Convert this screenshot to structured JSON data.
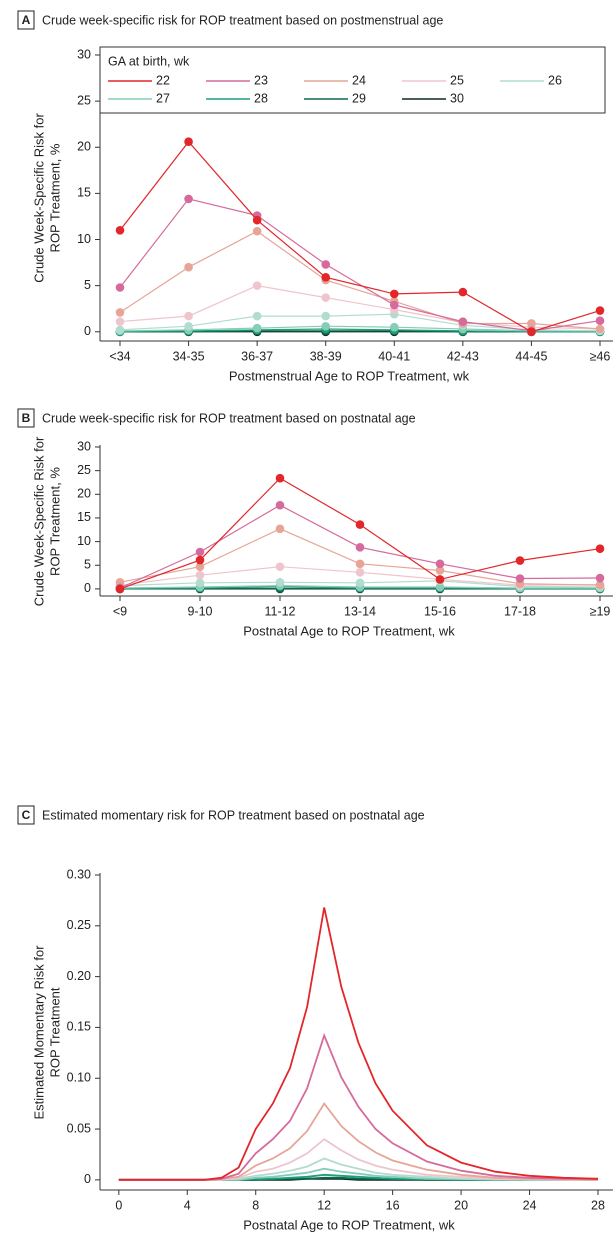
{
  "chart_data": [
    {
      "type": "line",
      "panel": "A",
      "title": "Crude week-specific risk for ROP treatment based on postmenstrual age",
      "ylabel": [
        "Crude Week-Specific Risk for",
        "ROP Treatment, %"
      ],
      "xlabel": "Postmenstrual Age to ROP Treatment, wk",
      "categories": [
        "<34",
        "34-35",
        "36-37",
        "38-39",
        "40-41",
        "42-43",
        "44-45",
        "≥46"
      ],
      "ylim": [
        -1,
        30
      ],
      "yticks": [
        0,
        5,
        10,
        15,
        20,
        25,
        30
      ],
      "markers": true,
      "legend_title": "GA at birth, wk",
      "series": [
        {
          "name": "22",
          "color": "#e2262a",
          "values": [
            11,
            20.6,
            12.1,
            5.9,
            4.1,
            4.3,
            0,
            2.3
          ]
        },
        {
          "name": "23",
          "color": "#d66a9c",
          "values": [
            4.8,
            14.4,
            12.6,
            7.3,
            2.9,
            1.1,
            0.1,
            1.2
          ]
        },
        {
          "name": "24",
          "color": "#e6a597",
          "values": [
            2.1,
            7.0,
            10.9,
            5.6,
            3.3,
            0.9,
            0.9,
            0.3
          ]
        },
        {
          "name": "25",
          "color": "#efc5cd",
          "values": [
            1.1,
            1.7,
            5.0,
            3.7,
            2.4,
            1.0,
            0.5,
            0.3
          ]
        },
        {
          "name": "26",
          "color": "#b2dccf",
          "values": [
            0.2,
            0.6,
            1.7,
            1.7,
            1.9,
            0.7,
            0.2,
            0.1
          ]
        },
        {
          "name": "27",
          "color": "#86cdb8",
          "values": [
            0.1,
            0.2,
            0.4,
            0.6,
            0.5,
            0.3,
            0.1,
            0.1
          ]
        },
        {
          "name": "28",
          "color": "#1f9e7d",
          "values": [
            0,
            0.1,
            0.2,
            0.3,
            0.2,
            0.1,
            0,
            0
          ]
        },
        {
          "name": "29",
          "color": "#0b6b48",
          "values": [
            0,
            0,
            0.1,
            0.1,
            0.1,
            0,
            0,
            0
          ]
        },
        {
          "name": "30",
          "color": "#0d2b20",
          "values": [
            0,
            0,
            0,
            0,
            0,
            0,
            0,
            0
          ]
        }
      ]
    },
    {
      "type": "line",
      "panel": "B",
      "title": "Crude week-specific risk for ROP treatment based on postnatal age",
      "ylabel": [
        "Crude Week-Specific Risk for",
        "ROP Treatment, %"
      ],
      "xlabel": "Postnatal Age to ROP Treatment, wk",
      "categories": [
        "<9",
        "9-10",
        "11-12",
        "13-14",
        "15-16",
        "17-18",
        "≥19"
      ],
      "ylim": [
        -1.5,
        30
      ],
      "yticks": [
        0,
        5,
        10,
        15,
        20,
        25,
        30
      ],
      "markers": true,
      "series": [
        {
          "color": "#e2262a",
          "values": [
            0,
            6.1,
            23.4,
            13.6,
            2.0,
            6.0,
            8.5
          ]
        },
        {
          "color": "#d66a9c",
          "values": [
            0.2,
            7.8,
            17.7,
            8.8,
            5.3,
            2.2,
            2.3
          ]
        },
        {
          "color": "#e6a597",
          "values": [
            1.4,
            4.7,
            12.7,
            5.3,
            3.9,
            1.1,
            0.8
          ]
        },
        {
          "color": "#efc5cd",
          "values": [
            0.8,
            2.9,
            4.7,
            3.5,
            2.0,
            0.8,
            0.9
          ]
        },
        {
          "color": "#b2dccf",
          "values": [
            0.7,
            1.3,
            1.4,
            1.3,
            1.7,
            0.5,
            0.4
          ]
        },
        {
          "color": "#86cdb8",
          "values": [
            0.2,
            0.4,
            0.7,
            0.4,
            0.4,
            0.2,
            0.2
          ]
        },
        {
          "color": "#1f9e7d",
          "values": [
            0.1,
            0.2,
            0.5,
            0.2,
            0.2,
            0.1,
            0.1
          ]
        },
        {
          "color": "#0b6b48",
          "values": [
            0,
            0.1,
            0.1,
            0.1,
            0.1,
            0,
            0
          ]
        },
        {
          "color": "#0d2b20",
          "values": [
            0,
            0,
            0,
            0,
            0,
            0,
            0
          ]
        }
      ]
    },
    {
      "type": "line",
      "panel": "C",
      "title": "Estimated momentary risk for ROP treatment based on postnatal age",
      "ylabel": [
        "Estimated Momentary Risk for",
        "ROP Treatment"
      ],
      "xlabel": "Postnatal Age to ROP Treatment, wk",
      "x": [
        0,
        2,
        4,
        5,
        6,
        7,
        8,
        9,
        10,
        11,
        12,
        13,
        14,
        15,
        16,
        18,
        20,
        22,
        24,
        26,
        28
      ],
      "xlim": [
        -1.1,
        28
      ],
      "xticks": [
        0,
        4,
        8,
        12,
        16,
        20,
        24,
        28
      ],
      "ylim": [
        -0.01,
        0.3
      ],
      "yticks": [
        0,
        0.05,
        {
          "value": 0.1,
          "label": "0.10"
        },
        0.15,
        {
          "value": 0.2,
          "label": "0.20"
        },
        0.25,
        {
          "value": 0.3,
          "label": "0.30"
        }
      ],
      "markers": false,
      "series": [
        {
          "color": "#e2262a",
          "values": [
            0,
            0,
            0,
            0,
            0.002,
            0.012,
            0.05,
            0.075,
            0.11,
            0.17,
            0.268,
            0.19,
            0.135,
            0.095,
            0.068,
            0.034,
            0.017,
            0.008,
            0.004,
            0.002,
            0.001
          ]
        },
        {
          "color": "#d66a9c",
          "values": [
            0,
            0,
            0,
            0,
            0.001,
            0.006,
            0.026,
            0.04,
            0.058,
            0.09,
            0.142,
            0.101,
            0.072,
            0.05,
            0.036,
            0.018,
            0.009,
            0.004,
            0.002,
            0.001,
            0.001
          ]
        },
        {
          "color": "#e6a597",
          "values": [
            0,
            0,
            0,
            0,
            0.001,
            0.003,
            0.014,
            0.021,
            0.031,
            0.048,
            0.075,
            0.053,
            0.038,
            0.027,
            0.019,
            0.01,
            0.005,
            0.002,
            0.001,
            0.001,
            0
          ]
        },
        {
          "color": "#efc5cd",
          "values": [
            0,
            0,
            0,
            0,
            0,
            0.002,
            0.008,
            0.011,
            0.017,
            0.026,
            0.04,
            0.029,
            0.02,
            0.014,
            0.01,
            0.005,
            0.003,
            0.001,
            0.001,
            0,
            0
          ]
        },
        {
          "color": "#b2dccf",
          "values": [
            0,
            0,
            0,
            0,
            0,
            0.001,
            0.004,
            0.006,
            0.009,
            0.013,
            0.021,
            0.015,
            0.011,
            0.007,
            0.005,
            0.003,
            0.001,
            0.001,
            0,
            0,
            0
          ]
        },
        {
          "color": "#86cdb8",
          "values": [
            0,
            0,
            0,
            0,
            0,
            0,
            0.002,
            0.003,
            0.005,
            0.007,
            0.011,
            0.008,
            0.006,
            0.004,
            0.003,
            0.001,
            0.001,
            0,
            0,
            0,
            0
          ]
        },
        {
          "color": "#1f9e7d",
          "values": [
            0,
            0,
            0,
            0,
            0,
            0,
            0.001,
            0.001,
            0.002,
            0.003,
            0.005,
            0.004,
            0.003,
            0.002,
            0.001,
            0.001,
            0,
            0,
            0,
            0,
            0
          ]
        },
        {
          "color": "#0b6b48",
          "values": [
            0,
            0,
            0,
            0,
            0,
            0,
            0,
            0.001,
            0.001,
            0.001,
            0.002,
            0.002,
            0.001,
            0.001,
            0.001,
            0,
            0,
            0,
            0,
            0,
            0
          ]
        },
        {
          "color": "#0d2b20",
          "values": [
            0,
            0,
            0,
            0,
            0,
            0,
            0,
            0,
            0,
            0.001,
            0.001,
            0.001,
            0,
            0,
            0,
            0,
            0,
            0,
            0,
            0,
            0
          ]
        }
      ]
    }
  ]
}
